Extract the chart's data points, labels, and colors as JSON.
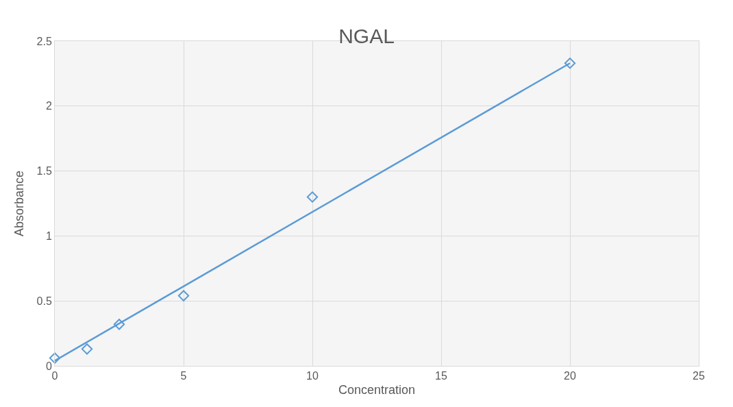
{
  "chart_data": {
    "type": "scatter",
    "title": "NGAL",
    "xlabel": "Concentration",
    "ylabel": "Absorbance",
    "series": [
      {
        "color": "#5b9bd5",
        "marker": "diamond",
        "x": [
          0,
          1.25,
          2.5,
          5,
          10,
          20
        ],
        "values": [
          0.06,
          0.13,
          0.32,
          0.54,
          1.3,
          2.33
        ]
      },
      {
        "type": "line",
        "color": "#5b9bd5",
        "marker": "none",
        "line_style": "solid",
        "x": [
          0,
          20
        ],
        "values": [
          0.04,
          2.33
        ]
      }
    ],
    "xlim": [
      0,
      25
    ],
    "xticks": [
      0,
      5,
      10,
      15,
      20,
      25
    ],
    "ylim": [
      0,
      2.5
    ],
    "yticks": [
      0,
      0.5,
      1,
      1.5,
      2,
      2.5
    ],
    "grid": true
  }
}
